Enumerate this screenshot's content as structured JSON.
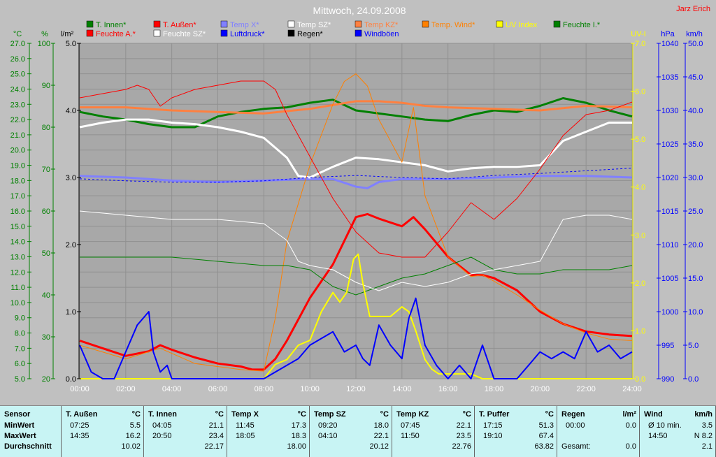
{
  "title": "Mittwoch, 24.09.2008",
  "author": "Jarz Erich",
  "legend": [
    {
      "label": "T. Innen*",
      "color": "#008000"
    },
    {
      "label": "T. Außen*",
      "color": "#ff0000"
    },
    {
      "label": "Temp X*",
      "color": "#8080ff"
    },
    {
      "label": "Temp SZ*",
      "color": "#ffffff"
    },
    {
      "label": "Temp KZ*",
      "color": "#ff8040"
    },
    {
      "label": "Temp. Wind*",
      "color": "#ff8000"
    },
    {
      "label": "UV Index",
      "color": "#ffff00"
    },
    {
      "label": "Feuchte I.*",
      "color": "#008000"
    },
    {
      "label": "Feuchte A.*",
      "color": "#ff0000"
    },
    {
      "label": "Feuchte SZ*",
      "color": "#ffffff"
    },
    {
      "label": "Luftdruck*",
      "color": "#0000ff"
    },
    {
      "label": "Regen*",
      "color": "#000000"
    },
    {
      "label": "Windböen",
      "color": "#0000ff"
    }
  ],
  "axes": {
    "temp_unit": "°C",
    "hum_unit": "%",
    "rain_unit": "l/m²",
    "uv_unit": "UV-I",
    "press_unit": "hPa",
    "wind_unit": "km/h",
    "temp_ticks": [
      "27.0",
      "26.0",
      "25.0",
      "24.0",
      "23.0",
      "22.0",
      "21.0",
      "20.0",
      "19.0",
      "18.0",
      "17.0",
      "16.0",
      "15.0",
      "14.0",
      "13.0",
      "12.0",
      "11.0",
      "10.0",
      "9.0",
      "8.0",
      "7.0",
      "6.0",
      "5.0"
    ],
    "hum_ticks": [
      "100",
      "90",
      "80",
      "70",
      "60",
      "50",
      "40",
      "30",
      "20"
    ],
    "rain_ticks": [
      "5.0",
      "4.0",
      "3.0",
      "2.0",
      "1.0",
      "0.0"
    ],
    "uv_ticks": [
      "7.0",
      "6.0",
      "5.0",
      "4.0",
      "3.0",
      "2.0",
      "1.0",
      "0.0"
    ],
    "press_ticks": [
      "1040",
      "1035",
      "1030",
      "1025",
      "1020",
      "1015",
      "1010",
      "1005",
      "1000",
      "995",
      "990"
    ],
    "wind_ticks": [
      "50.0",
      "45.0",
      "40.0",
      "35.0",
      "30.0",
      "25.0",
      "20.0",
      "15.0",
      "10.0",
      "5.0",
      "0.0"
    ],
    "time_ticks": [
      "00:00",
      "02:00",
      "04:00",
      "06:00",
      "08:00",
      "10:00",
      "12:00",
      "14:00",
      "16:00",
      "18:00",
      "20:00",
      "22:00",
      "24:00"
    ]
  },
  "chart_data": {
    "type": "line",
    "title": "Mittwoch, 24.09.2008",
    "x_range": [
      0,
      24
    ],
    "x_unit": "hours",
    "ylim_temp": [
      5,
      27
    ],
    "ylim_humidity": [
      20,
      100
    ],
    "ylim_rain": [
      0,
      5
    ],
    "ylim_uv": [
      0,
      7
    ],
    "ylim_pressure": [
      990,
      1040
    ],
    "ylim_wind": [
      0,
      50
    ],
    "grid": true,
    "series": [
      {
        "name": "T. Innen*",
        "axis": "temp",
        "color": "#008000",
        "width": 3,
        "x": [
          0,
          1,
          2,
          3,
          4,
          5,
          6,
          7,
          8,
          9,
          10,
          11,
          12,
          13,
          14,
          15,
          16,
          17,
          18,
          19,
          20,
          21,
          22,
          23,
          24
        ],
        "y": [
          22.5,
          22.2,
          22.0,
          21.7,
          21.5,
          21.5,
          22.2,
          22.5,
          22.7,
          22.8,
          23.1,
          23.3,
          22.6,
          22.4,
          22.2,
          22.0,
          21.9,
          22.3,
          22.6,
          22.5,
          22.9,
          23.4,
          23.1,
          22.6,
          22.2
        ]
      },
      {
        "name": "T. Außen*",
        "axis": "temp",
        "color": "#ff0000",
        "width": 3,
        "x": [
          0,
          1,
          2,
          3,
          3.5,
          4,
          5,
          6,
          7,
          7.5,
          8,
          8.5,
          9,
          10,
          11,
          12,
          12.5,
          13,
          14,
          14.5,
          15,
          16,
          17,
          17.5,
          18,
          19,
          20,
          21,
          22,
          23,
          24
        ],
        "y": [
          7.5,
          7.0,
          6.5,
          6.8,
          7.2,
          6.9,
          6.4,
          6.0,
          5.8,
          5.6,
          5.6,
          6.3,
          7.5,
          10.3,
          12.5,
          15.6,
          15.8,
          15.5,
          15.0,
          15.6,
          14.8,
          13.0,
          11.8,
          11.8,
          11.6,
          10.8,
          9.4,
          8.6,
          8.1,
          7.9,
          7.8
        ]
      },
      {
        "name": "Temp X*",
        "axis": "temp",
        "color": "#8080ff",
        "width": 3,
        "x": [
          0,
          2,
          4,
          6,
          8,
          10,
          11,
          12,
          12.5,
          13,
          14,
          16,
          18,
          20,
          22,
          24
        ],
        "y": [
          18.3,
          18.2,
          18.0,
          17.9,
          18.0,
          18.1,
          18.1,
          17.6,
          17.5,
          17.9,
          18.1,
          18.1,
          18.2,
          18.3,
          18.3,
          18.2
        ]
      },
      {
        "name": "Temp SZ*",
        "axis": "temp",
        "color": "#ffffff",
        "width": 3,
        "x": [
          0,
          1,
          2,
          3,
          4,
          5,
          6,
          7,
          8,
          9,
          9.5,
          10,
          11,
          12,
          13,
          14,
          15,
          16,
          17,
          18,
          19,
          20,
          21,
          22,
          23,
          24
        ],
        "y": [
          21.5,
          21.8,
          22.0,
          22.0,
          21.8,
          21.7,
          21.5,
          21.2,
          20.8,
          19.5,
          18.3,
          18.2,
          18.9,
          19.5,
          19.4,
          19.2,
          19.0,
          18.6,
          18.8,
          18.9,
          18.9,
          19.0,
          20.6,
          21.2,
          21.8,
          21.8
        ]
      },
      {
        "name": "Temp KZ*",
        "axis": "temp",
        "color": "#ff8040",
        "width": 3,
        "x": [
          0,
          2,
          4,
          6,
          8,
          10,
          12,
          13,
          14,
          15,
          16,
          18,
          20,
          22,
          24
        ],
        "y": [
          22.8,
          22.8,
          22.6,
          22.5,
          22.4,
          22.7,
          23.2,
          23.2,
          23.1,
          22.9,
          22.8,
          22.7,
          22.6,
          22.9,
          22.8
        ]
      },
      {
        "name": "Temp. Wind*",
        "axis": "temp",
        "color": "#ff8000",
        "width": 1,
        "x": [
          0,
          2,
          3.5,
          5,
          7,
          8,
          8.5,
          9,
          10,
          11,
          11.5,
          12,
          12.5,
          13,
          14,
          14.5,
          15,
          16,
          17,
          17.5,
          18,
          19,
          20,
          21,
          22,
          23,
          24
        ],
        "y": [
          7.2,
          6.3,
          7.0,
          6.0,
          5.6,
          5.5,
          9.0,
          14.0,
          19.0,
          23.0,
          24.5,
          25.0,
          24.2,
          22.0,
          19.2,
          22.8,
          17.0,
          13.0,
          11.7,
          11.8,
          11.4,
          10.5,
          9.5,
          8.6,
          8.0,
          7.6,
          7.5
        ]
      },
      {
        "name": "Feuchte I.*",
        "axis": "humidity",
        "color": "#008000",
        "width": 1,
        "x": [
          0,
          2,
          4,
          6,
          8,
          9,
          10,
          11,
          12,
          13,
          14,
          15,
          16,
          17,
          18,
          19,
          20,
          21,
          22,
          23,
          24
        ],
        "y": [
          49,
          49,
          49,
          48,
          47,
          47,
          46,
          42,
          40,
          42,
          44,
          45,
          47,
          49,
          46,
          45,
          45,
          46,
          46,
          46,
          47
        ]
      },
      {
        "name": "Feuchte A.*",
        "axis": "humidity",
        "color": "#ff0000",
        "width": 1,
        "x": [
          0,
          1,
          2,
          2.5,
          3,
          3.5,
          4,
          5,
          6,
          7,
          8,
          8.5,
          9,
          10,
          11,
          12,
          13,
          14,
          15,
          16,
          17,
          18,
          19,
          20,
          21,
          22,
          23,
          24
        ],
        "y": [
          87,
          88,
          89,
          90,
          89,
          85,
          87,
          89,
          90,
          91,
          91,
          89,
          83,
          73,
          63,
          55,
          50,
          49,
          49,
          55,
          62,
          58,
          63,
          70,
          78,
          83,
          84,
          86
        ]
      },
      {
        "name": "Feuchte SZ*",
        "axis": "humidity",
        "color": "#ffffff",
        "width": 1,
        "x": [
          0,
          2,
          4,
          6,
          8,
          9,
          9.5,
          10,
          11,
          12,
          13,
          14,
          15,
          16,
          17,
          18,
          19,
          20,
          20.5,
          21,
          22,
          23,
          24
        ],
        "y": [
          60,
          59,
          58,
          58,
          57,
          53,
          48,
          47,
          46,
          43,
          41,
          43,
          42,
          43,
          45,
          46,
          47,
          48,
          53,
          58,
          59,
          59,
          58
        ]
      },
      {
        "name": "Luftdruck*",
        "axis": "pressure",
        "color": "#0000ff",
        "width": 1,
        "dash": true,
        "x": [
          0,
          2,
          4,
          6,
          8,
          10,
          12,
          14,
          16,
          18,
          20,
          22,
          24
        ],
        "y": [
          1019.8,
          1019.5,
          1019.3,
          1019.3,
          1019.5,
          1020.0,
          1020.3,
          1020.0,
          1019.8,
          1020.3,
          1020.6,
          1021.0,
          1021.4
        ]
      },
      {
        "name": "UV Index",
        "axis": "uv",
        "color": "#ffff00",
        "width": 2,
        "x": [
          0,
          8,
          8.5,
          9,
          9.5,
          10,
          10.5,
          11,
          11.3,
          11.6,
          11.9,
          12.1,
          12.3,
          12.6,
          13,
          13.5,
          14,
          14.3,
          14.6,
          15,
          15.3,
          15.6,
          16,
          17,
          17.5,
          18,
          24
        ],
        "y": [
          0,
          0,
          0.3,
          0.4,
          0.7,
          0.8,
          1.4,
          1.8,
          1.6,
          1.8,
          2.5,
          2.6,
          2.0,
          1.3,
          1.3,
          1.3,
          1.5,
          1.4,
          1.0,
          0.4,
          0.2,
          0.1,
          0.1,
          0.1,
          0.0,
          0.0,
          0
        ]
      },
      {
        "name": "Windböen",
        "axis": "wind",
        "color": "#0000ff",
        "width": 2,
        "x": [
          0,
          0.5,
          1,
          1.5,
          2,
          2.5,
          3,
          3.2,
          3.5,
          3.8,
          4,
          5,
          6,
          7,
          8,
          8.5,
          9,
          9.5,
          10,
          10.5,
          11,
          11.5,
          12,
          12.3,
          12.6,
          13,
          13.5,
          14,
          14.3,
          14.6,
          15,
          15.5,
          16,
          16.5,
          17,
          17.5,
          18,
          19,
          19.5,
          20,
          20.5,
          21,
          21.5,
          22,
          22.5,
          23,
          23.5,
          24
        ],
        "y": [
          5,
          1,
          0,
          0,
          4,
          8,
          10,
          4,
          1,
          2,
          0,
          0,
          0,
          0,
          0,
          1,
          2,
          3,
          5,
          6,
          7,
          4,
          5,
          3,
          2,
          8,
          5,
          3,
          9,
          12,
          5,
          2,
          0,
          2,
          0,
          5,
          0,
          0,
          2,
          4,
          3,
          4,
          3,
          7,
          4,
          5,
          3,
          4
        ]
      }
    ]
  },
  "stats": {
    "sensor_label": "Sensor",
    "row_labels": [
      "MinWert",
      "MaxWert",
      "Durchschnitt"
    ],
    "columns": [
      {
        "name": "T. Außen",
        "unit": "°C",
        "min_time": "07:25",
        "min_val": "5.5",
        "max_time": "14:35",
        "max_val": "16.2",
        "avg": "10.02"
      },
      {
        "name": "T. Innen",
        "unit": "°C",
        "min_time": "04:05",
        "min_val": "21.1",
        "max_time": "20:50",
        "max_val": "23.4",
        "avg": "22.17"
      },
      {
        "name": "Temp X",
        "unit": "°C",
        "min_time": "11:45",
        "min_val": "17.3",
        "max_time": "18:05",
        "max_val": "18.3",
        "avg": "18.00"
      },
      {
        "name": "Temp SZ",
        "unit": "°C",
        "min_time": "09:20",
        "min_val": "18.0",
        "max_time": "04:10",
        "max_val": "22.1",
        "avg": "20.12"
      },
      {
        "name": "Temp KZ",
        "unit": "°C",
        "min_time": "07:45",
        "min_val": "22.1",
        "max_time": "11:50",
        "max_val": "23.5",
        "avg": "22.76"
      },
      {
        "name": "T. Puffer",
        "unit": "°C",
        "min_time": "17:15",
        "min_val": "51.3",
        "max_time": "19:10",
        "max_val": "67.4",
        "avg": "63.82"
      },
      {
        "name": "Regen",
        "unit": "l/m²",
        "min_time": "00:00",
        "min_val": "0.0",
        "max_time": "",
        "max_val": "",
        "avg_label": "Gesamt:",
        "avg": "0.0"
      },
      {
        "name": "Wind",
        "unit": "km/h",
        "min_time": "Ø 10 min.",
        "min_val": "3.5",
        "max_time": "14:50",
        "max_val": "N 8.2",
        "avg": "2.1"
      }
    ]
  }
}
